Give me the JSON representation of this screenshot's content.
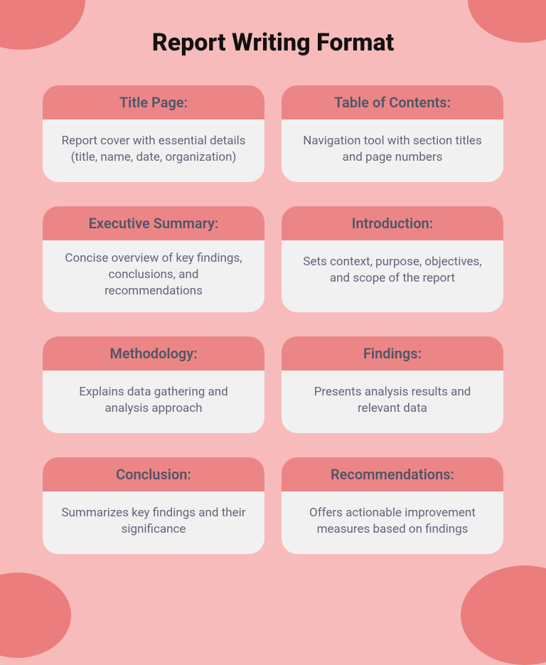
{
  "title": "Report Writing Format",
  "colors": {
    "page_bg": "#f8bbbb",
    "blob": "#ec7d7d",
    "card_header_bg": "#ec8686",
    "card_body_bg": "#f1f1f1",
    "header_text": "#515568",
    "body_text": "#62657a",
    "title_text": "#111111"
  },
  "typography": {
    "title_fontsize": 34,
    "title_weight": 800,
    "header_fontsize": 20,
    "header_weight": 600,
    "body_fontsize": 17
  },
  "layout": {
    "columns": 2,
    "rows": 4,
    "card_radius": 22,
    "gap_row": 34,
    "gap_col": 24
  },
  "cards": [
    {
      "header": "Title Page:",
      "body": "Report cover with essential details (title, name, date, organization)"
    },
    {
      "header": "Table of Contents:",
      "body": "Navigation tool with section titles and page numbers"
    },
    {
      "header": "Executive Summary:",
      "body": "Concise overview of key findings, conclusions, and recommendations"
    },
    {
      "header": "Introduction:",
      "body": "Sets context, purpose, objectives, and scope of the report"
    },
    {
      "header": "Methodology:",
      "body": "Explains data gathering and analysis approach"
    },
    {
      "header": "Findings:",
      "body": "Presents analysis results and relevant data"
    },
    {
      "header": "Conclusion:",
      "body": "Summarizes key findings and their significance"
    },
    {
      "header": "Recommendations:",
      "body": "Offers actionable improvement measures based on findings"
    }
  ]
}
